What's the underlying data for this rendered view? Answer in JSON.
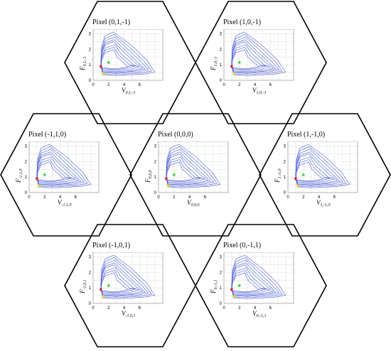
{
  "axis": {
    "x_ticks": [
      "0",
      "2",
      "4",
      "6"
    ],
    "y_ticks": [
      "0",
      "1",
      "2",
      "3"
    ],
    "xlim": [
      0,
      9
    ],
    "ylim": [
      0,
      3.3
    ]
  },
  "colors": {
    "hex_border": "#000000",
    "curve": "#3a4fd0",
    "grid": "#e4e4e4",
    "frame": "#9a9a9a",
    "marker_red": "#e8141c",
    "marker_green": "#2fd12f",
    "marker_yellow": "#f5cf12"
  },
  "markers": {
    "red": [
      1.0,
      0.9
    ],
    "green": [
      2.0,
      1.15
    ],
    "yellow": [
      1.3,
      0.45
    ]
  },
  "cells": [
    {
      "id": "0_1_m1",
      "title": "Pixel (0,1,-1)",
      "xsym": "V",
      "xsub": "0,1,-1",
      "ysym": "F",
      "ysub": "0,1,-1"
    },
    {
      "id": "1_0_m1",
      "title": "Pixel (1,0,-1)",
      "xsym": "V",
      "xsub": "1,0,-1",
      "ysym": "F",
      "ysub": "1,0,-1"
    },
    {
      "id": "m1_1_0",
      "title": "Pixel (-1,1,0)",
      "xsym": "V",
      "xsub": "-1,1,0",
      "ysym": "F",
      "ysub": "-1,1,0"
    },
    {
      "id": "0_0_0",
      "title": "Pixel (0,0,0)",
      "xsym": "V",
      "xsub": "0,0,0",
      "ysym": "F",
      "ysub": "0,0,0"
    },
    {
      "id": "1_m1_0",
      "title": "Pixel (1,-1,0)",
      "xsym": "V",
      "xsub": "1,-1,0",
      "ysym": "F",
      "ysub": "1,-1,0"
    },
    {
      "id": "m1_0_1",
      "title": "Pixel (-1,0,1)",
      "xsym": "V",
      "xsub": "-1,0,1",
      "ysym": "F",
      "ysub": "-1,0,1"
    },
    {
      "id": "0_m1_1",
      "title": "Pixel (0,-1,1)",
      "xsym": "V",
      "xsub": "0,-1,1",
      "ysym": "F",
      "ysub": "0,-1,1"
    }
  ]
}
